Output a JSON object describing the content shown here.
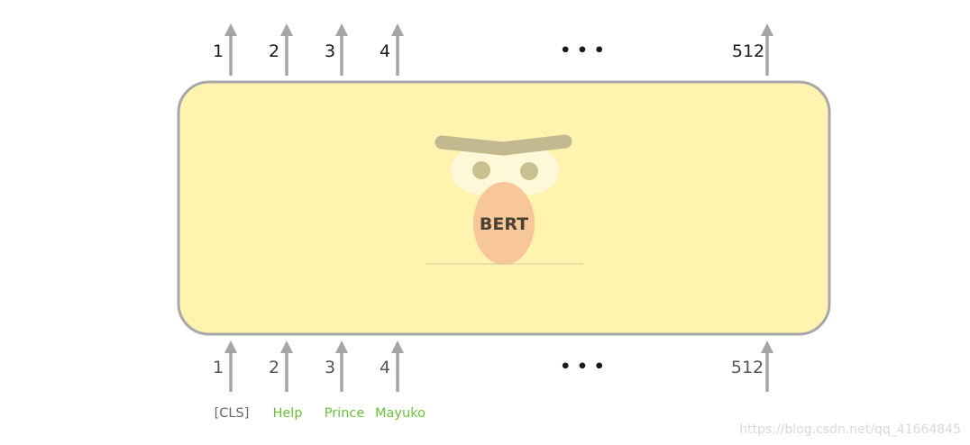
{
  "model": {
    "label": "BERT"
  },
  "output_positions": [
    "1",
    "2",
    "3",
    "4",
    "512"
  ],
  "input_positions": [
    "1",
    "2",
    "3",
    "4",
    "512"
  ],
  "ellipsis": "• • •",
  "input_tokens": [
    "[CLS]",
    "Help",
    "Prince",
    "Mayuko"
  ],
  "watermark": "https://blog.csdn.net/qq_41664845",
  "colors": {
    "box_fill": "#fff3b0",
    "box_stroke": "#a8a8a8",
    "arrow": "#a5a5a5",
    "output_text": "#1a1a1a",
    "input_text": "#555555",
    "cls_token": "#666666",
    "word_token": "#6cbf3c",
    "nose": "#f7c79a",
    "brow": "#c3b991",
    "eye_white": "#fff8d8",
    "pupil": "#c9c08f"
  }
}
